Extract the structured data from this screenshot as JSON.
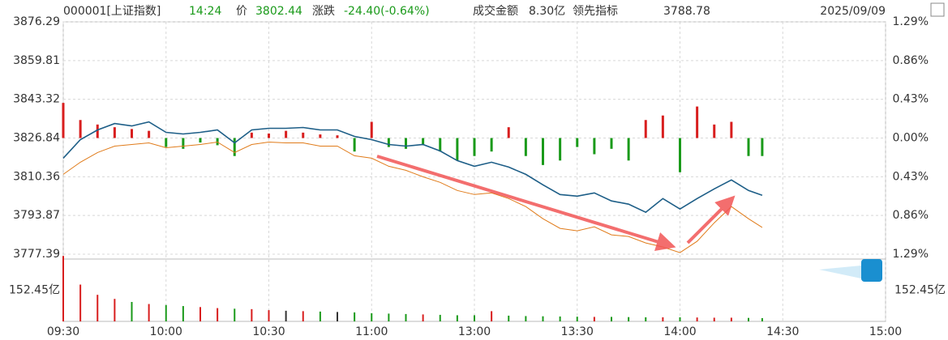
{
  "header": {
    "code": "000001[上证指数]",
    "time": "14:24",
    "price_label": "价",
    "price": "3802.44",
    "change_label": "涨跌",
    "change": "-24.40(-0.64%)",
    "amount_label": "成交金额",
    "amount": "8.30亿",
    "lead_label": "领先指标",
    "lead": "3788.78",
    "date": "2025/09/09"
  },
  "chart_data": {
    "type": "line",
    "x": [
      0,
      5,
      10,
      15,
      20,
      25,
      30,
      35,
      40,
      45,
      50,
      55,
      60,
      65,
      70,
      75,
      80,
      85,
      90,
      95,
      100,
      105,
      110,
      115,
      120,
      125,
      130,
      135,
      140,
      145,
      150,
      155,
      160,
      165,
      170,
      175,
      180,
      185,
      190,
      195,
      200,
      204
    ],
    "xlim": [
      0,
      240
    ],
    "xticks": [
      {
        "value": 0,
        "label": "09:30"
      },
      {
        "value": 30,
        "label": "10:00"
      },
      {
        "value": 60,
        "label": "10:30"
      },
      {
        "value": 90,
        "label": "11:00"
      },
      {
        "value": 120,
        "label": "13:00"
      },
      {
        "value": 150,
        "label": "13:30"
      },
      {
        "value": 180,
        "label": "14:00"
      },
      {
        "value": 210,
        "label": "14:30"
      },
      {
        "value": 240,
        "label": "15:00"
      }
    ],
    "ylim": [
      3777.39,
      3876.29
    ],
    "yticks": [
      3777.39,
      3793.87,
      3810.36,
      3826.84,
      3843.32,
      3859.81,
      3876.29
    ],
    "y2lim": [
      -1.29,
      1.29
    ],
    "y2ticks": [
      {
        "value": -1.29,
        "label": "1.29%"
      },
      {
        "value": -0.86,
        "label": "0.86%"
      },
      {
        "value": -0.43,
        "label": "0.43%"
      },
      {
        "value": 0,
        "label": "0.00%"
      },
      {
        "value": 0.43,
        "label": "0.43%"
      },
      {
        "value": 0.86,
        "label": "0.86%"
      },
      {
        "value": 1.29,
        "label": "1.29%"
      }
    ],
    "up_color": "#d81e1e",
    "down_color": "#1a9a1a",
    "flat_color": "#333333",
    "grid": true,
    "series": [
      {
        "color": "#1d5e87",
        "values": [
          3818.25,
          3826.15,
          3830.28,
          3833.02,
          3831.99,
          3833.71,
          3829.24,
          3828.56,
          3829.24,
          3830.28,
          3824.78,
          3830.28,
          3830.96,
          3830.96,
          3831.31,
          3830.28,
          3830.28,
          3827.53,
          3826.15,
          3824.09,
          3823.4,
          3824.09,
          3821.34,
          3817.22,
          3814.82,
          3816.53,
          3814.47,
          3811.38,
          3806.92,
          3802.79,
          3802.11,
          3803.48,
          3800.05,
          3798.67,
          3795.24,
          3801.08,
          3796.61,
          3801.08,
          3805.2,
          3808.98,
          3804.51,
          3802.44
        ]
      },
      {
        "color": "#e07b1a",
        "values": [
          3811.38,
          3816.53,
          3820.66,
          3823.4,
          3824.09,
          3824.78,
          3822.72,
          3823.4,
          3824.09,
          3825.12,
          3820.66,
          3824.09,
          3825.12,
          3824.78,
          3824.78,
          3823.4,
          3823.4,
          3819.28,
          3818.25,
          3814.82,
          3813.1,
          3810.35,
          3807.95,
          3804.51,
          3802.79,
          3803.48,
          3801.08,
          3797.64,
          3792.49,
          3788.37,
          3787.34,
          3789.05,
          3785.62,
          3784.93,
          3782.18,
          3780.47,
          3778.06,
          3782.87,
          3790.77,
          3797.64,
          3792.49,
          3788.78
        ]
      }
    ],
    "bars": {
      "axis": "y2",
      "values": [
        0.39,
        0.2,
        0.15,
        0.12,
        0.1,
        0.08,
        -0.1,
        -0.12,
        -0.05,
        -0.08,
        -0.2,
        0.06,
        0.05,
        0.08,
        0.06,
        0.04,
        0.03,
        -0.15,
        0.18,
        -0.1,
        -0.12,
        -0.08,
        -0.15,
        -0.25,
        -0.2,
        -0.15,
        0.12,
        -0.2,
        -0.3,
        -0.25,
        -0.1,
        -0.18,
        -0.12,
        -0.25,
        0.2,
        0.25,
        -0.38,
        0.35,
        0.15,
        0.18,
        -0.2,
        -0.2
      ]
    },
    "volume": {
      "ylim": [
        0,
        304.9
      ],
      "yticks": [
        {
          "value": 152.45,
          "label": "152.45亿"
        }
      ],
      "values": [
        320,
        180,
        130,
        110,
        95,
        85,
        80,
        75,
        70,
        65,
        62,
        60,
        55,
        52,
        50,
        48,
        46,
        44,
        40,
        38,
        36,
        34,
        32,
        30,
        30,
        50,
        28,
        26,
        25,
        24,
        23,
        22,
        22,
        21,
        20,
        20,
        20,
        19,
        18,
        18,
        17,
        16
      ]
    }
  }
}
